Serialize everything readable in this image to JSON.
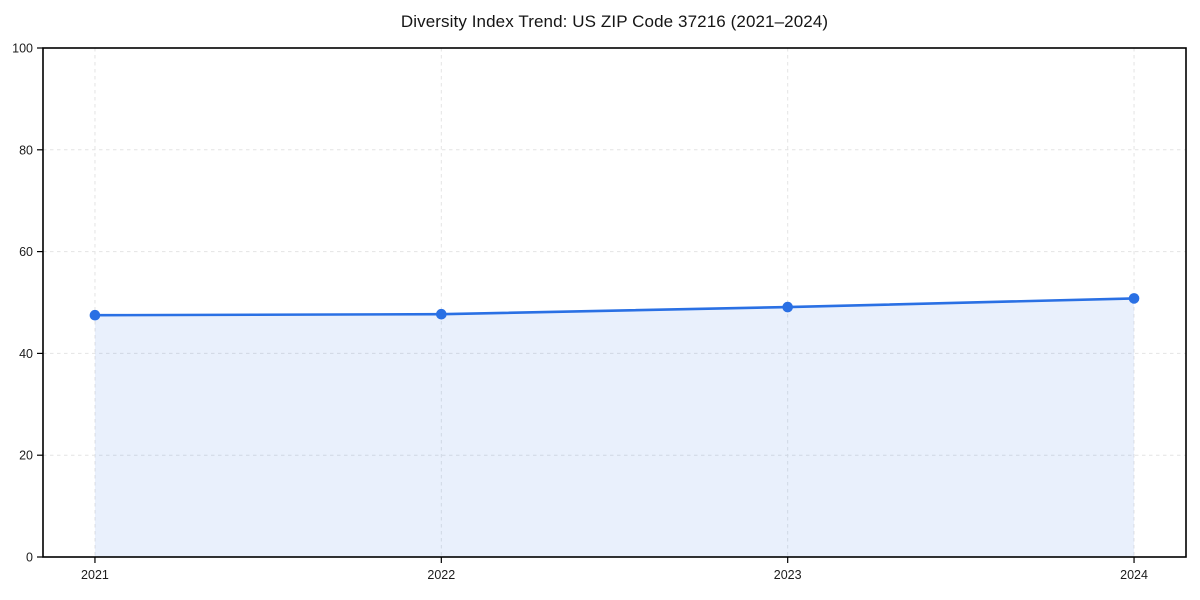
{
  "chart_data": {
    "type": "line",
    "title": "Diversity Index Trend: US ZIP Code 37216 (2021–2024)",
    "x": [
      2021,
      2022,
      2023,
      2024
    ],
    "xtick_labels": [
      "2021",
      "2022",
      "2023",
      "2024"
    ],
    "values": [
      47.5,
      47.7,
      49.1,
      50.8
    ],
    "xlabel": "",
    "ylabel": "",
    "xlim": [
      2020.85,
      2024.15
    ],
    "ylim": [
      0,
      100
    ],
    "yticks": [
      0,
      20,
      40,
      60,
      80,
      100
    ],
    "ytick_labels": [
      "0",
      "20",
      "40",
      "60",
      "80",
      "100"
    ],
    "grid": true,
    "grid_style": "dashed",
    "legend": false,
    "marker": "circle",
    "area_fill": true,
    "colors": {
      "line": "#2a70e4",
      "fill": "#e8f0fc",
      "fill_opacity": 0.1,
      "grid": "#e4e4e4",
      "spine": "#000000",
      "tick_text": "#1c1c1c",
      "title_text": "#151515",
      "background": "#ffffff"
    }
  }
}
